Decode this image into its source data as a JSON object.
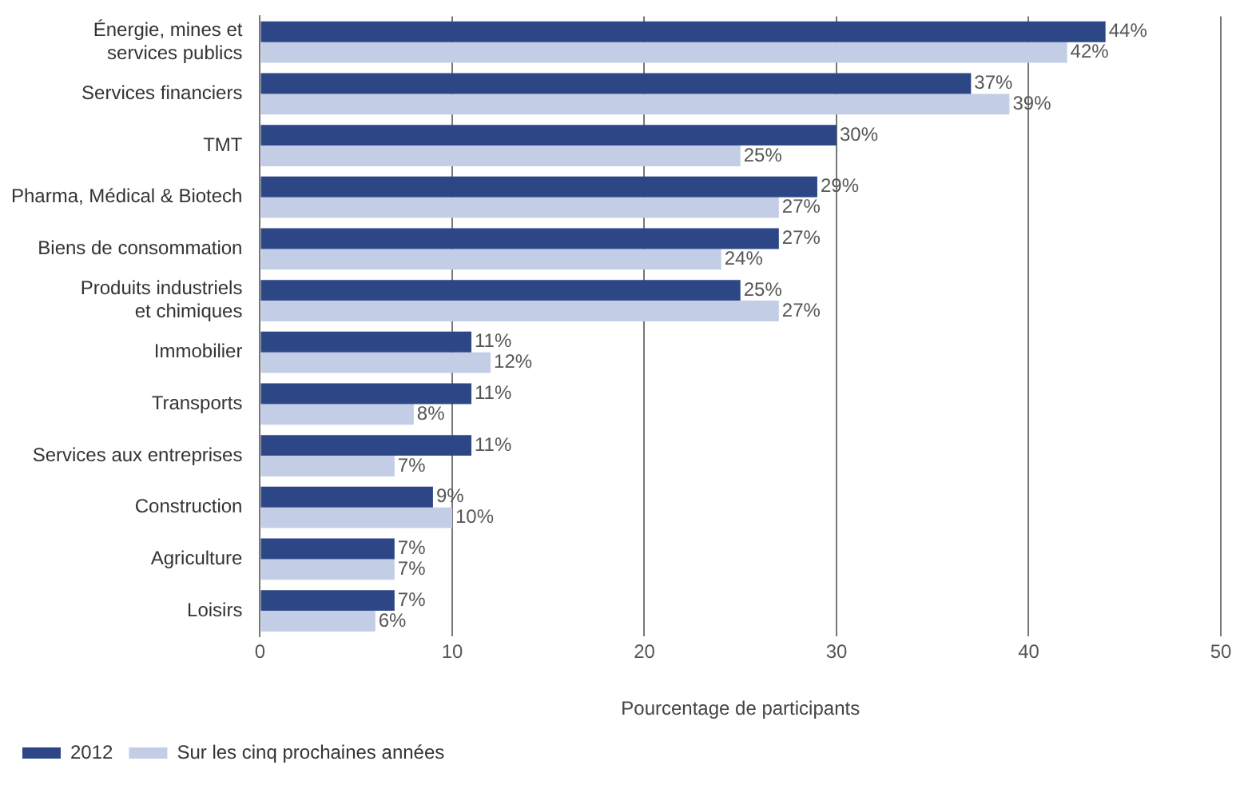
{
  "chart_data": {
    "type": "bar",
    "orientation": "horizontal",
    "xlabel": "Pourcentage de participants",
    "categories": [
      "Énergie, mines et\nservices publics",
      "Services financiers",
      "TMT",
      "Pharma, Médical & Biotech",
      "Biens de consommation",
      "Produits industriels\net chimiques",
      "Immobilier",
      "Transports",
      "Services aux entreprises",
      "Construction",
      "Agriculture",
      "Loisirs"
    ],
    "series": [
      {
        "name": "2012",
        "color": "#2d4786",
        "values": [
          44,
          37,
          30,
          29,
          27,
          25,
          11,
          11,
          11,
          9,
          7,
          7
        ],
        "value_labels": [
          "44%",
          "37%",
          "30%",
          "29%",
          "27%",
          "25%",
          "11%",
          "11%",
          "11%",
          "9%",
          "7%",
          "7%"
        ]
      },
      {
        "name": "Sur les cinq prochaines années",
        "color": "#c3cde6",
        "values": [
          42,
          39,
          25,
          27,
          24,
          27,
          12,
          8,
          7,
          10,
          7,
          6
        ],
        "value_labels": [
          "42%",
          "39%",
          "25%",
          "27%",
          "24%",
          "27%",
          "12%",
          "8%",
          "7%",
          "10%",
          "7%",
          "6%"
        ]
      }
    ],
    "xlim": [
      0,
      50
    ],
    "xticks": [
      0,
      10,
      20,
      30,
      40,
      50
    ],
    "grid": "x",
    "legend": "bottom left"
  }
}
